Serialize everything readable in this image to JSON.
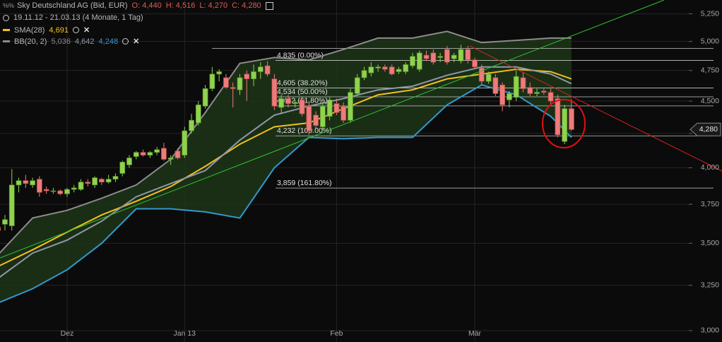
{
  "header": {
    "title": "Sky Deutschland AG (Bid, EUR)",
    "ohlc": [
      "O: 4,440",
      "H: 4,516",
      "L: 4,270",
      "C: 4,280"
    ],
    "range": "19.11.12 - 21.03.13 (4 Monate, 1 Tag)"
  },
  "chart_data": {
    "type": "candlestick",
    "log_scale": true,
    "grid": true,
    "up_color": "#8fd24e",
    "down_color": "#ee7b7b",
    "grid_color": "#252525",
    "categories": [
      null,
      null,
      null,
      null,
      null,
      null,
      null,
      null,
      null,
      null,
      "Dez",
      null,
      null,
      null,
      null,
      null,
      null,
      null,
      null,
      null,
      null,
      null,
      null,
      null,
      null,
      null,
      null,
      "Jan 13",
      null,
      null,
      null,
      null,
      null,
      null,
      null,
      null,
      null,
      null,
      null,
      null,
      null,
      null,
      null,
      null,
      null,
      null,
      null,
      null,
      null,
      "Feb",
      null,
      null,
      null,
      null,
      null,
      null,
      null,
      null,
      null,
      null,
      null,
      null,
      null,
      null,
      null,
      null,
      null,
      null,
      null,
      "Mär",
      null,
      null,
      null,
      null,
      null,
      null,
      null,
      null,
      null,
      null,
      null,
      null,
      null,
      null
    ],
    "open": [
      3.6,
      3.62,
      3.61,
      3.88,
      3.91,
      3.88,
      3.92,
      3.85,
      3.84,
      3.84,
      3.82,
      3.85,
      3.85,
      3.9,
      3.88,
      3.92,
      3.9,
      3.92,
      3.96,
      4.02,
      4.08,
      4.11,
      4.09,
      4.11,
      4.14,
      4.06,
      4.12,
      4.09,
      4.27,
      4.33,
      4.46,
      4.6,
      4.72,
      4.69,
      4.61,
      4.59,
      4.72,
      4.68,
      4.74,
      4.79,
      4.68,
      4.45,
      4.52,
      4.48,
      4.51,
      4.46,
      4.39,
      4.3,
      4.38,
      4.48,
      4.46,
      4.35,
      4.56,
      4.69,
      4.73,
      4.77,
      4.78,
      4.78,
      4.74,
      4.74,
      4.79,
      4.76,
      4.88,
      4.9,
      4.86,
      4.93,
      4.85,
      4.83,
      4.93,
      4.84,
      4.77,
      4.66,
      4.69,
      4.63,
      4.51,
      4.53,
      4.69,
      4.61,
      4.56,
      4.58,
      4.57,
      4.52,
      4.19,
      4.44
    ],
    "high": [
      3.64,
      3.68,
      3.99,
      3.93,
      3.95,
      3.93,
      3.94,
      3.87,
      3.86,
      3.85,
      3.86,
      3.88,
      3.92,
      3.92,
      3.94,
      3.93,
      3.95,
      3.96,
      4.05,
      4.09,
      4.12,
      4.13,
      4.12,
      4.15,
      4.18,
      4.09,
      4.14,
      4.3,
      4.4,
      4.5,
      4.63,
      4.78,
      4.76,
      4.72,
      4.65,
      4.72,
      4.75,
      4.8,
      4.82,
      4.83,
      4.72,
      4.55,
      4.55,
      4.51,
      4.53,
      4.5,
      4.42,
      4.48,
      4.53,
      4.52,
      4.49,
      4.6,
      4.72,
      4.78,
      4.82,
      4.8,
      4.8,
      4.8,
      4.78,
      4.82,
      4.9,
      4.92,
      4.92,
      4.93,
      4.9,
      4.96,
      4.9,
      4.97,
      4.96,
      4.86,
      4.8,
      4.74,
      4.72,
      4.65,
      4.58,
      4.75,
      4.74,
      4.65,
      4.6,
      4.6,
      4.6,
      4.55,
      4.47,
      4.516
    ],
    "low": [
      3.56,
      3.58,
      3.58,
      3.83,
      3.86,
      3.86,
      3.8,
      3.82,
      3.82,
      3.81,
      3.8,
      3.83,
      3.84,
      3.87,
      3.86,
      3.88,
      3.89,
      3.9,
      3.94,
      4.0,
      4.06,
      4.08,
      4.07,
      4.09,
      4.05,
      4.02,
      4.06,
      4.07,
      4.25,
      4.31,
      4.44,
      4.58,
      4.66,
      4.6,
      4.45,
      4.55,
      4.5,
      4.62,
      4.68,
      4.7,
      4.43,
      4.4,
      4.45,
      4.45,
      4.38,
      4.24,
      4.28,
      4.28,
      4.35,
      4.39,
      4.33,
      4.33,
      4.54,
      4.67,
      4.7,
      4.74,
      4.74,
      4.71,
      4.72,
      4.72,
      4.77,
      4.74,
      4.83,
      4.8,
      4.82,
      4.8,
      4.82,
      4.81,
      4.81,
      4.76,
      4.63,
      4.64,
      4.54,
      4.42,
      4.45,
      4.5,
      4.57,
      4.54,
      4.54,
      4.55,
      4.47,
      4.22,
      4.17,
      4.27
    ],
    "close": [
      3.58,
      3.65,
      3.88,
      3.91,
      3.89,
      3.91,
      3.83,
      3.84,
      3.84,
      3.82,
      3.85,
      3.86,
      3.9,
      3.89,
      3.93,
      3.9,
      3.92,
      3.94,
      4.04,
      4.07,
      4.11,
      4.09,
      4.11,
      4.13,
      4.06,
      4.07,
      4.07,
      4.27,
      4.35,
      4.47,
      4.6,
      4.72,
      4.74,
      4.61,
      4.6,
      4.69,
      4.68,
      4.74,
      4.78,
      4.72,
      4.46,
      4.52,
      4.48,
      4.49,
      4.4,
      4.27,
      4.31,
      4.46,
      4.51,
      4.41,
      4.35,
      4.57,
      4.69,
      4.75,
      4.78,
      4.78,
      4.76,
      4.72,
      4.76,
      4.8,
      4.87,
      4.9,
      4.85,
      4.82,
      4.87,
      4.82,
      4.88,
      4.93,
      4.84,
      4.78,
      4.66,
      4.72,
      4.56,
      4.47,
      4.56,
      4.7,
      4.6,
      4.56,
      4.57,
      4.57,
      4.5,
      4.24,
      4.44,
      4.28
    ],
    "ylim": [
      2.94,
      5.38
    ],
    "yticks": [
      {
        "value": 3.0,
        "label": "3,000"
      },
      {
        "value": 3.25,
        "label": "3,250"
      },
      {
        "value": 3.5,
        "label": "3,500"
      },
      {
        "value": 3.75,
        "label": "3,750"
      },
      {
        "value": 4.0,
        "label": "4,000"
      },
      {
        "value": 4.25,
        "label": "4,250"
      },
      {
        "value": 4.5,
        "label": "4,500"
      },
      {
        "value": 4.75,
        "label": "4,750"
      },
      {
        "value": 5.0,
        "label": "5,000"
      },
      {
        "value": 5.25,
        "label": "5,250"
      }
    ],
    "indicator_x": [
      0,
      5,
      10,
      15,
      20,
      25,
      30,
      35,
      40,
      45,
      50,
      55,
      60,
      65,
      70,
      75,
      80,
      83
    ],
    "indicators": [
      {
        "name": "SMA(28)",
        "color": "#f2c01c",
        "lines": [
          {
            "color": "#f2c01c",
            "values": [
              3.36,
              3.46,
              3.57,
              3.68,
              3.77,
              3.87,
              4.01,
              4.17,
              4.3,
              4.33,
              4.44,
              4.55,
              4.59,
              4.68,
              4.72,
              4.76,
              4.74,
              4.68
            ],
            "current": {
              "value": 4.691,
              "label": "4,691"
            }
          }
        ]
      },
      {
        "name": "BB(20, 2)",
        "color": "#8c8c8c",
        "fill": "#1d3519",
        "lines": [
          {
            "color": "#8c8c8c",
            "values": [
              3.43,
              3.66,
              3.71,
              3.79,
              3.88,
              4.06,
              4.41,
              4.81,
              4.86,
              4.84,
              4.93,
              5.03,
              5.03,
              5.09,
              4.99,
              5.01,
              5.03,
              5.03
            ],
            "current": {
              "value": 5.036,
              "label": "5,036"
            }
          },
          {
            "color": "#8e98a8",
            "values": [
              3.29,
              3.44,
              3.52,
              3.64,
              3.8,
              3.89,
              3.98,
              4.2,
              4.39,
              4.46,
              4.52,
              4.59,
              4.62,
              4.71,
              4.78,
              4.78,
              4.72,
              4.64
            ],
            "current": {
              "value": 4.642,
              "label": "4,642"
            }
          },
          {
            "color": "#3399cc",
            "values": [
              3.15,
              3.23,
              3.34,
              3.5,
              3.72,
              3.72,
              3.7,
              3.66,
              4.0,
              4.22,
              4.21,
              4.22,
              4.22,
              4.47,
              4.63,
              4.55,
              4.38,
              4.22
            ],
            "current": {
              "value": 4.248,
              "label": "4,248"
            }
          }
        ]
      }
    ],
    "fibonacci": {
      "color": "#c8c8c8",
      "anchor_high": 4.94,
      "levels": [
        {
          "value": 4.835,
          "label": "4,835 (0.00%)"
        },
        {
          "value": 4.605,
          "label": "4,605 (38.20%)"
        },
        {
          "value": 4.534,
          "label": "4,534 (50.00%)"
        },
        {
          "value": 4.462,
          "label": "4,462 (61.80%)"
        },
        {
          "value": 4.232,
          "label": "4,232 (100.00%)"
        },
        {
          "value": 3.859,
          "label": "3,859 (161.80%)"
        }
      ]
    },
    "last_price": {
      "value": 4.28,
      "label": "4,280"
    }
  }
}
